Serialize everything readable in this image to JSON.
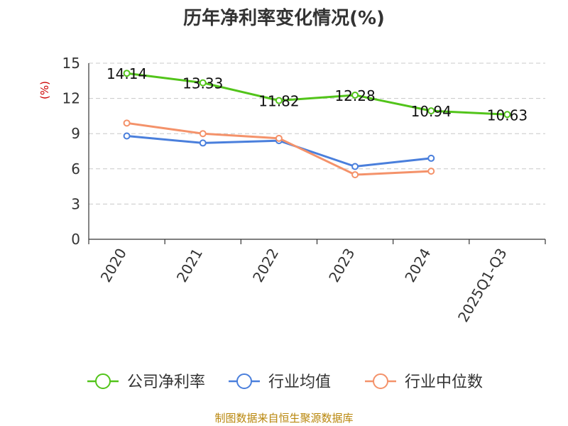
{
  "source": "制图数据来自恒生聚源数据库",
  "chart_data": {
    "type": "line",
    "title": "历年净利率变化情况(%)",
    "ylabel": "(%)",
    "categories": [
      "2020",
      "2021",
      "2022",
      "2023",
      "2024",
      "2025Q1-Q3"
    ],
    "ylim": [
      0,
      15
    ],
    "yticks": [
      0,
      3,
      6,
      9,
      12,
      15
    ],
    "grid": true,
    "legend_position": "bottom",
    "series": [
      {
        "name": "公司净利率",
        "color": "#52c41a",
        "values": [
          14.14,
          13.33,
          11.82,
          12.28,
          10.94,
          10.63
        ],
        "labels": [
          "14.14",
          "13.33",
          "11.82",
          "12.28",
          "10.94",
          "10.63"
        ]
      },
      {
        "name": "行业均值",
        "color": "#4a7fdc",
        "values": [
          8.8,
          8.2,
          8.4,
          6.2,
          6.9,
          null
        ]
      },
      {
        "name": "行业中位数",
        "color": "#f4926a",
        "values": [
          9.9,
          9.0,
          8.6,
          5.5,
          5.8,
          null
        ]
      }
    ]
  }
}
